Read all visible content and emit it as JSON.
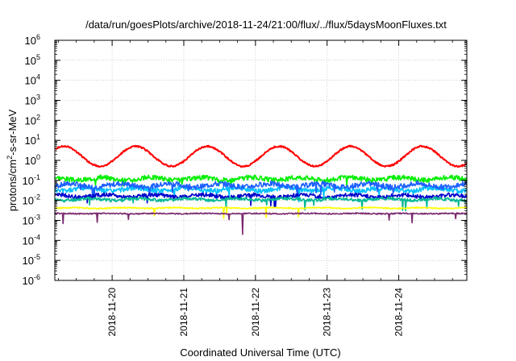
{
  "chart_data": {
    "type": "line",
    "title": "/data/run/goesPlots/archive/2018-11-24/21:00/flux/../flux/5daysMoonFluxes.txt",
    "xlabel": "Coordinated Universal Time (UTC)",
    "ylabel_parts": {
      "pre": "protons/cm",
      "sup": "2",
      "post": "-s-sr-MeV"
    },
    "ytick_base": "10",
    "yscale": "log",
    "ylim_exp": [
      -6,
      6
    ],
    "yticks": [
      {
        "exp": "-6",
        "pow": -6
      },
      {
        "exp": "-5",
        "pow": -5
      },
      {
        "exp": "-4",
        "pow": -4
      },
      {
        "exp": "-3",
        "pow": -3
      },
      {
        "exp": "-2",
        "pow": -2
      },
      {
        "exp": "-1",
        "pow": -1
      },
      {
        "exp": "0",
        "pow": 0
      },
      {
        "exp": "1",
        "pow": 1
      },
      {
        "exp": "2",
        "pow": 2
      },
      {
        "exp": "3",
        "pow": 3
      },
      {
        "exp": "4",
        "pow": 4
      },
      {
        "exp": "5",
        "pow": 5
      },
      {
        "exp": "6",
        "pow": 6
      }
    ],
    "xlim_days": [
      19.2,
      24.95
    ],
    "xticks": [
      {
        "label": "2018-11-20",
        "day": 20
      },
      {
        "label": "2018-11-21",
        "day": 21
      },
      {
        "label": "2018-11-22",
        "day": 22
      },
      {
        "label": "2018-11-23",
        "day": 23
      },
      {
        "label": "2018-11-24",
        "day": 24
      }
    ],
    "grid": true,
    "series": [
      {
        "color": "#ff0000",
        "mode": "red",
        "base": 0,
        "amp": 0,
        "noise": 0,
        "seed": 1
      },
      {
        "color": "#00ee00",
        "mode": "flat",
        "base": -0.92,
        "amp": 0.07,
        "noise": 0.12,
        "seed": 3
      },
      {
        "color": "#00bfff",
        "mode": "flat",
        "base": -1.45,
        "amp": 0.08,
        "noise": 0.12,
        "seed": 5
      },
      {
        "color": "#1e60ff",
        "mode": "flat",
        "base": -1.25,
        "amp": 0.08,
        "noise": 0.13,
        "seed": 7
      },
      {
        "color": "#0000cc",
        "mode": "flat",
        "base": -1.78,
        "amp": 0.06,
        "noise": 0.1,
        "seed": 9
      },
      {
        "color": "#00b894",
        "mode": "flat",
        "base": -1.95,
        "amp": 0.05,
        "noise": 0.08,
        "seed": 11
      },
      {
        "color": "#ffff00",
        "mode": "flat",
        "base": -2.38,
        "amp": 0.02,
        "noise": 0.03,
        "seed": 13
      },
      {
        "color": "#7a2a6e",
        "mode": "flat",
        "base": -2.66,
        "amp": 0.01,
        "noise": 0.03,
        "seed": 15
      }
    ]
  }
}
